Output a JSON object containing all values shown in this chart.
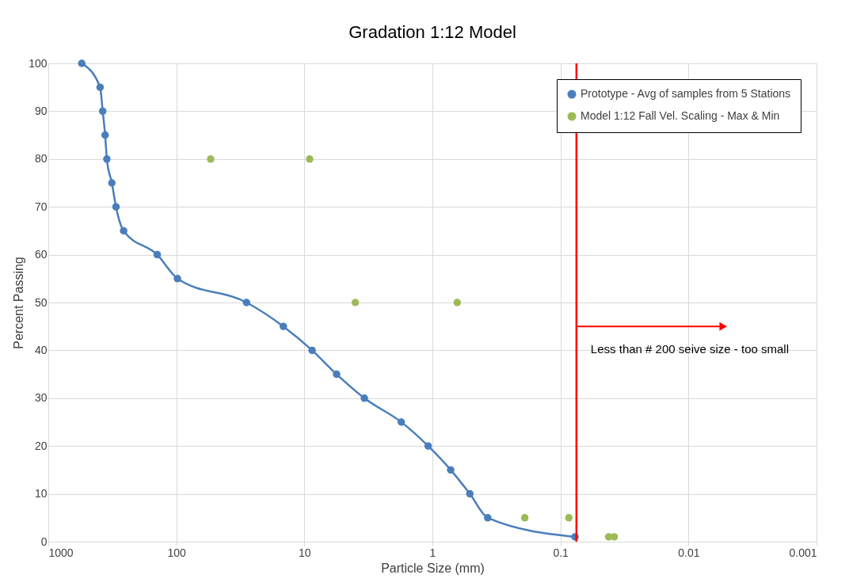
{
  "chart_data": {
    "type": "line",
    "title": "Gradation 1:12 Model",
    "xlabel": "Particle Size (mm)",
    "ylabel": "Percent Passing",
    "xlim": [
      1000,
      0.001
    ],
    "xticks": [
      1000,
      100,
      10,
      1,
      0.1,
      0.01,
      0.001
    ],
    "ylim": [
      0,
      100
    ],
    "yticks": [
      0,
      10,
      20,
      30,
      40,
      50,
      60,
      70,
      80,
      90,
      100
    ],
    "log": "x",
    "grid": true,
    "legend": "top right",
    "marker": "circle",
    "series": [
      {
        "name": "Prototype - Avg of samples from 5 Stations",
        "color": "#4a7ebb",
        "x": [
          548,
          394,
          376,
          360,
          349,
          319,
          296,
          258,
          141,
          98,
          28.3,
          14.6,
          8.7,
          5.6,
          3.4,
          1.75,
          1.08,
          0.72,
          0.51,
          0.37,
          0.077
        ],
        "values": [
          100,
          95,
          90,
          85,
          80,
          75,
          70,
          65,
          60,
          55,
          50,
          45,
          40,
          35,
          30,
          25,
          20,
          15,
          10,
          5,
          1
        ]
      },
      {
        "name": "Model 1:12 Fall Vel. Scaling - Max & Min",
        "type": "scatter",
        "color": "#9bbb59",
        "x": [
          54,
          9.1,
          4.0,
          0.64,
          0.19,
          0.086,
          0.042,
          0.038
        ],
        "values": [
          80,
          80,
          50,
          50,
          5,
          5,
          1,
          1
        ]
      }
    ],
    "ref_lines": [
      {
        "axis": "x",
        "value": 0.075,
        "color": "#ff0000"
      }
    ],
    "annotations": [
      {
        "text": "Less than # 200 seive size - too small",
        "x": 0.075,
        "y": 45
      }
    ]
  }
}
